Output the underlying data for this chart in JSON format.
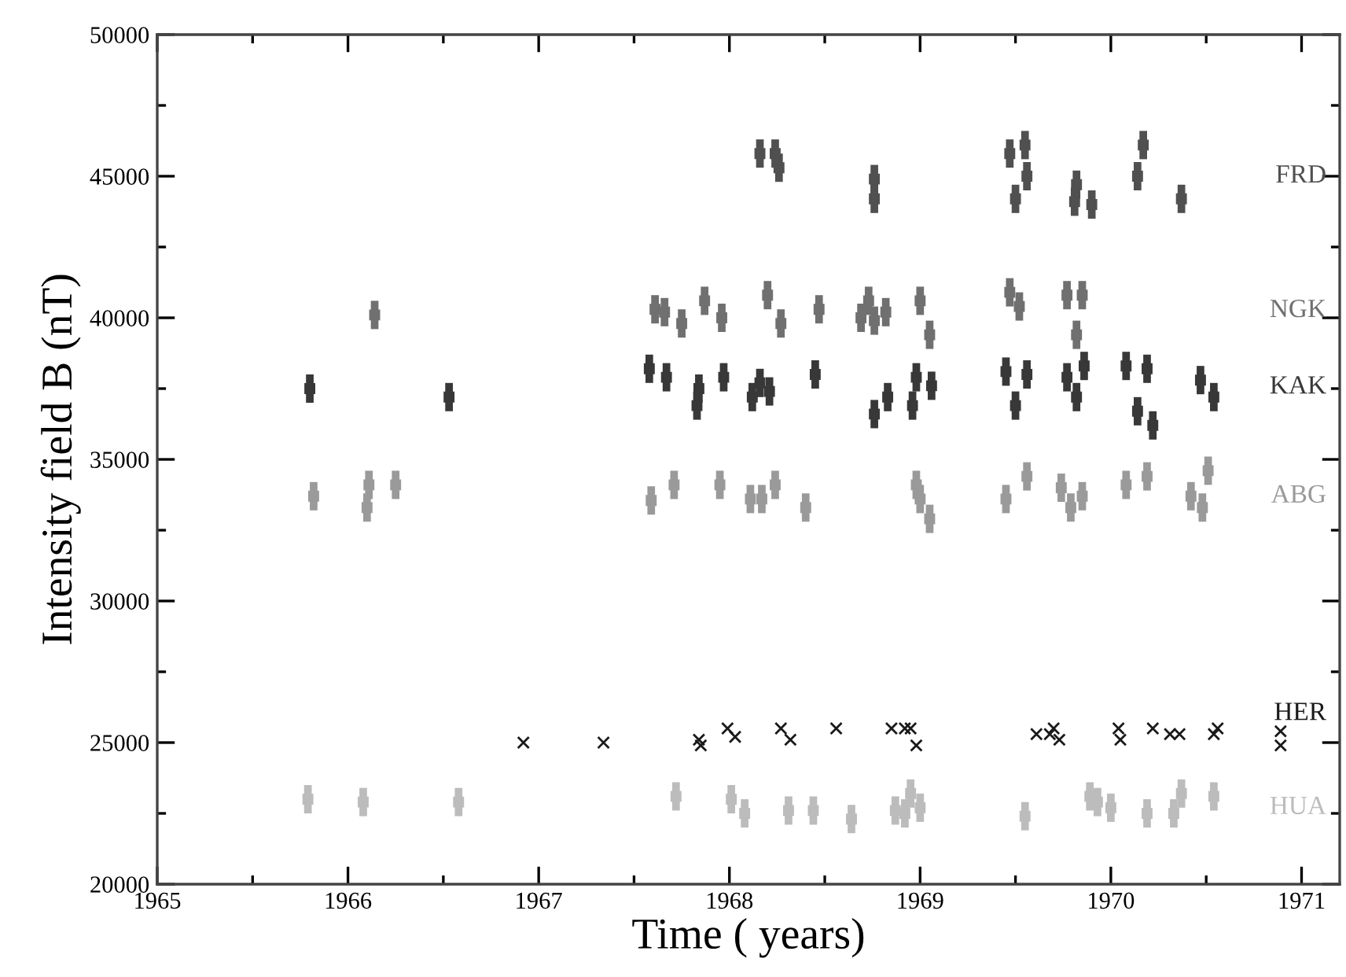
{
  "chart_data": {
    "type": "scatter",
    "xlabel": "Time ( years)",
    "ylabel": "Intensity field B (nT)",
    "xlim": [
      1965,
      1971.2
    ],
    "ylim": [
      20000,
      50000
    ],
    "xticks": [
      1965,
      {
        "value": 1965.5,
        "label": null
      },
      1966,
      {
        "value": 1966.5,
        "label": null
      },
      1967,
      {
        "value": 1967.5,
        "label": null
      },
      1968,
      {
        "value": 1968.5,
        "label": null
      },
      1969,
      {
        "value": 1969.5,
        "label": null
      },
      1970,
      {
        "value": 1970.5,
        "label": null
      },
      1971
    ],
    "yticks": [
      20000,
      {
        "value": 22500,
        "label": null
      },
      25000,
      {
        "value": 27500,
        "label": null
      },
      30000,
      {
        "value": 32500,
        "label": null
      },
      35000,
      {
        "value": 37500,
        "label": null
      },
      40000,
      {
        "value": 42500,
        "label": null
      },
      45000,
      {
        "value": 47500,
        "label": null
      },
      50000
    ],
    "grid": false,
    "legend": "right",
    "marker": "square",
    "series": [
      {
        "name": "FRD",
        "color": "#505050",
        "x": [
          1968.16,
          1968.24,
          1968.26,
          1968.76,
          1968.76,
          1969.47,
          1969.55,
          1969.56,
          1969.5,
          1969.82,
          1969.81,
          1969.9,
          1970.17,
          1970.14,
          1970.37
        ],
        "values": [
          45800,
          45800,
          45300,
          44900,
          44200,
          45800,
          46100,
          45000,
          44200,
          44700,
          44100,
          44000,
          46100,
          45000,
          44200
        ],
        "errors": [
          500,
          500,
          500,
          500,
          500,
          500,
          500,
          500,
          500,
          500,
          500,
          500,
          500,
          500,
          500
        ]
      },
      {
        "name": "NGK",
        "color": "#707070",
        "x": [
          1966.14,
          1967.61,
          1967.66,
          1967.75,
          1967.87,
          1967.96,
          1968.2,
          1968.27,
          1968.47,
          1968.73,
          1968.69,
          1968.76,
          1968.82,
          1969.0,
          1969.05,
          1969.47,
          1969.52,
          1969.77,
          1969.85,
          1969.82
        ],
        "values": [
          40100,
          40300,
          40200,
          39800,
          40600,
          40000,
          40800,
          39800,
          40300,
          40600,
          40000,
          39900,
          40200,
          40600,
          39400,
          40900,
          40400,
          40800,
          40800,
          39400
        ],
        "errors": [
          500,
          500,
          500,
          500,
          500,
          500,
          500,
          500,
          500,
          500,
          500,
          500,
          500,
          500,
          500,
          500,
          500,
          500,
          500,
          500
        ]
      },
      {
        "name": "KAK",
        "color": "#383838",
        "x": [
          1965.8,
          1966.53,
          1967.58,
          1967.67,
          1967.84,
          1967.83,
          1967.97,
          1968.12,
          1968.16,
          1968.21,
          1968.45,
          1968.76,
          1968.83,
          1968.96,
          1968.98,
          1969.06,
          1969.45,
          1969.5,
          1969.56,
          1969.77,
          1969.82,
          1969.86,
          1970.08,
          1970.19,
          1970.14,
          1970.22,
          1970.47,
          1970.54
        ],
        "values": [
          37500,
          37200,
          38200,
          37900,
          37500,
          36900,
          37900,
          37200,
          37700,
          37400,
          38000,
          36600,
          37200,
          36900,
          37900,
          37600,
          38100,
          36900,
          38000,
          37900,
          37200,
          38300,
          38300,
          38200,
          36700,
          36200,
          37800,
          37200
        ],
        "errors": [
          500,
          500,
          500,
          500,
          500,
          500,
          500,
          500,
          500,
          500,
          500,
          500,
          500,
          500,
          500,
          500,
          500,
          500,
          500,
          500,
          500,
          500,
          500,
          500,
          500,
          500,
          500,
          500
        ]
      },
      {
        "name": "ABG",
        "color": "#9a9a9a",
        "x": [
          1965.82,
          1966.11,
          1966.1,
          1966.25,
          1967.59,
          1967.71,
          1967.95,
          1968.11,
          1968.17,
          1968.24,
          1968.4,
          1968.98,
          1969.0,
          1969.05,
          1969.45,
          1969.56,
          1969.74,
          1969.79,
          1969.85,
          1970.08,
          1970.19,
          1970.42,
          1970.48,
          1970.51
        ],
        "values": [
          33700,
          34100,
          33300,
          34100,
          33550,
          34100,
          34100,
          33600,
          33600,
          34100,
          33300,
          34100,
          33600,
          32900,
          33600,
          34400,
          34000,
          33300,
          33700,
          34100,
          34400,
          33700,
          33300,
          34600
        ],
        "errors": [
          500,
          500,
          500,
          500,
          500,
          500,
          500,
          500,
          500,
          500,
          500,
          500,
          500,
          500,
          500,
          500,
          500,
          500,
          500,
          500,
          500,
          500,
          500,
          500
        ]
      },
      {
        "name": "HER",
        "color": "#1a1a1a",
        "marker": "cross",
        "x": [
          1966.92,
          1967.34,
          1967.84,
          1967.85,
          1967.99,
          1968.03,
          1968.27,
          1968.32,
          1968.56,
          1968.85,
          1968.92,
          1968.95,
          1968.98,
          1969.61,
          1969.68,
          1969.7,
          1969.73,
          1970.04,
          1970.05,
          1970.22,
          1970.31,
          1970.36,
          1970.54,
          1970.56,
          1970.89,
          1970.89
        ],
        "values": [
          25000,
          25000,
          25100,
          24900,
          25500,
          25200,
          25500,
          25100,
          25500,
          25500,
          25500,
          25500,
          24900,
          25300,
          25300,
          25500,
          25100,
          25500,
          25100,
          25500,
          25300,
          25300,
          25300,
          25500,
          25400,
          24900
        ]
      },
      {
        "name": "HUA",
        "color": "#bcbcbc",
        "x": [
          1965.79,
          1966.08,
          1966.58,
          1967.72,
          1968.01,
          1968.08,
          1968.31,
          1968.44,
          1968.64,
          1968.87,
          1968.92,
          1968.95,
          1969.0,
          1969.55,
          1969.89,
          1969.93,
          1970.0,
          1970.19,
          1970.33,
          1970.37,
          1970.54
        ],
        "values": [
          23000,
          22900,
          22900,
          23100,
          23000,
          22500,
          22600,
          22600,
          22300,
          22600,
          22500,
          23200,
          22700,
          22400,
          23100,
          22900,
          22700,
          22500,
          22500,
          23200,
          23100
        ],
        "errors": [
          500,
          500,
          500,
          500,
          500,
          500,
          500,
          500,
          500,
          500,
          500,
          500,
          500,
          500,
          500,
          500,
          500,
          500,
          500,
          500,
          500
        ]
      }
    ]
  }
}
